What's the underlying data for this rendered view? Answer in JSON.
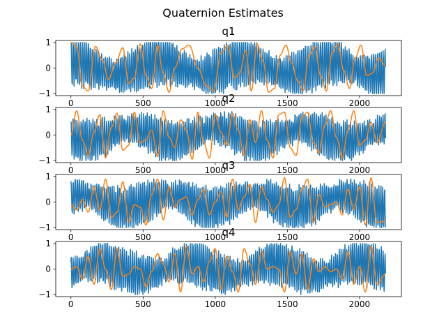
{
  "figure": {
    "title": "Quaternion Estimates"
  },
  "colors": {
    "measured": "#1f77b4",
    "estimate": "#ff7f0e",
    "axis": "#000000"
  },
  "chart_data": [
    {
      "type": "line",
      "title": "q1",
      "xlim": [
        -105,
        2290
      ],
      "ylim": [
        -1.08,
        1.08
      ],
      "xticks": [
        0,
        500,
        1000,
        1500,
        2000
      ],
      "yticks": [
        -1,
        0,
        1
      ],
      "grid": false,
      "x_range": [
        0,
        2180
      ],
      "series": [
        {
          "color": "#1f77b4",
          "kind": "noisy",
          "seed": 11,
          "amplitude": 0.95,
          "mean": 0.0
        },
        {
          "color": "#ff7f0e",
          "kind": "smooth",
          "x": [
            0,
            40,
            80,
            120,
            170,
            220,
            260,
            310,
            360,
            400,
            440,
            480,
            520,
            560,
            600,
            640,
            680,
            720,
            770,
            820,
            880,
            940,
            990,
            1040,
            1090,
            1130,
            1170,
            1210,
            1250,
            1290,
            1330,
            1370,
            1410,
            1450,
            1490,
            1530,
            1570,
            1610,
            1650,
            1690,
            1730,
            1770,
            1810,
            1850,
            1890,
            1930,
            1970,
            2010,
            2050,
            2090,
            2130,
            2180
          ],
          "y": [
            1.0,
            0.85,
            -0.7,
            -0.9,
            0.85,
            0.3,
            -0.45,
            0.2,
            0.8,
            -0.6,
            -0.4,
            0.95,
            -0.3,
            -0.8,
            0.9,
            -0.2,
            -0.95,
            0.0,
            0.75,
            0.9,
            0.0,
            -0.7,
            -0.9,
            0.6,
            0.9,
            -0.4,
            -0.2,
            0.7,
            -0.9,
            0.95,
            0.3,
            -0.95,
            -0.8,
            0.5,
            0.9,
            0.2,
            -0.5,
            -0.9,
            0.5,
            0.85,
            -0.3,
            -0.9,
            0.6,
            0.95,
            -0.1,
            -0.8,
            0.4,
            0.9,
            -0.3,
            -0.2,
            0.4,
            0.1
          ]
        }
      ]
    },
    {
      "type": "line",
      "title": "q2",
      "xlim": [
        -105,
        2290
      ],
      "ylim": [
        -1.08,
        1.08
      ],
      "xticks": [
        0,
        500,
        1000,
        1500,
        2000
      ],
      "yticks": [
        -1,
        0,
        1
      ],
      "grid": false,
      "x_range": [
        0,
        2180
      ],
      "series": [
        {
          "color": "#1f77b4",
          "kind": "noisy",
          "seed": 23,
          "amplitude": 0.8,
          "mean": 0.0
        },
        {
          "color": "#ff7f0e",
          "kind": "smooth",
          "x": [
            0,
            40,
            80,
            120,
            160,
            200,
            240,
            280,
            320,
            360,
            400,
            440,
            480,
            520,
            560,
            600,
            640,
            680,
            720,
            760,
            800,
            840,
            880,
            920,
            960,
            1000,
            1040,
            1080,
            1120,
            1160,
            1200,
            1240,
            1280,
            1320,
            1360,
            1400,
            1440,
            1480,
            1520,
            1560,
            1600,
            1640,
            1680,
            1720,
            1760,
            1800,
            1840,
            1880,
            1920,
            1960,
            2000,
            2040,
            2080,
            2120,
            2180
          ],
          "y": [
            0.0,
            0.95,
            -0.2,
            -0.8,
            0.1,
            0.8,
            -0.9,
            0.3,
            0.85,
            -0.6,
            -0.4,
            0.9,
            -0.3,
            -0.2,
            0.2,
            -0.85,
            0.95,
            -0.1,
            -0.5,
            0.6,
            0.2,
            -0.95,
            0.9,
            -0.3,
            -0.9,
            0.8,
            0.1,
            -0.4,
            0.85,
            0.2,
            -0.8,
            0.6,
            -0.3,
            0.95,
            -0.2,
            -0.9,
            0.8,
            0.9,
            -0.5,
            -0.8,
            0.7,
            0.9,
            -0.3,
            -0.7,
            0.4,
            0.95,
            -0.1,
            -0.9,
            0.2,
            0.95,
            -0.4,
            -0.2,
            0.5,
            -0.3,
            0.5
          ]
        }
      ]
    },
    {
      "type": "line",
      "title": "q3",
      "xlim": [
        -105,
        2290
      ],
      "ylim": [
        -1.08,
        1.08
      ],
      "xticks": [
        0,
        500,
        1000,
        1500,
        2000
      ],
      "yticks": [
        -1,
        0,
        1
      ],
      "grid": false,
      "x_range": [
        0,
        2180
      ],
      "series": [
        {
          "color": "#1f77b4",
          "kind": "noisy",
          "seed": 37,
          "amplitude": 0.85,
          "mean": 0.0
        },
        {
          "color": "#ff7f0e",
          "kind": "smooth",
          "x": [
            0,
            40,
            80,
            120,
            160,
            200,
            240,
            280,
            320,
            360,
            400,
            440,
            480,
            520,
            560,
            600,
            640,
            680,
            720,
            760,
            800,
            840,
            880,
            920,
            960,
            1000,
            1040,
            1080,
            1120,
            1160,
            1200,
            1240,
            1280,
            1320,
            1360,
            1400,
            1440,
            1480,
            1520,
            1560,
            1600,
            1640,
            1680,
            1720,
            1760,
            1800,
            1840,
            1880,
            1920,
            1960,
            2000,
            2040,
            2080,
            2120,
            2180
          ],
          "y": [
            -0.1,
            -0.3,
            0.1,
            -0.4,
            0.6,
            -0.3,
            0.9,
            -0.6,
            -0.4,
            0.8,
            -0.8,
            -0.1,
            -0.2,
            -0.9,
            0.3,
            0.9,
            -0.7,
            0.6,
            -0.2,
            0.1,
            0.2,
            -0.5,
            0.1,
            0.5,
            -0.5,
            0.0,
            0.4,
            -0.6,
            0.9,
            -0.3,
            0.2,
            0.7,
            -0.8,
            0.6,
            0.1,
            -0.4,
            -0.1,
            0.95,
            -0.6,
            -0.3,
            0.5,
            0.9,
            -0.8,
            0.3,
            -0.2,
            -0.1,
            0.0,
            -0.5,
            0.5,
            -0.3,
            0.6,
            -0.9,
            0.95,
            -0.8,
            -0.75
          ]
        }
      ]
    },
    {
      "type": "line",
      "title": "q4",
      "xlim": [
        -105,
        2290
      ],
      "ylim": [
        -1.08,
        1.08
      ],
      "xticks": [
        0,
        500,
        1000,
        1500,
        2000
      ],
      "yticks": [
        -1,
        0,
        1
      ],
      "grid": false,
      "x_range": [
        0,
        2180
      ],
      "series": [
        {
          "color": "#1f77b4",
          "kind": "noisy",
          "seed": 53,
          "amplitude": 0.85,
          "mean": 0.0
        },
        {
          "color": "#ff7f0e",
          "kind": "smooth",
          "x": [
            0,
            40,
            80,
            120,
            160,
            200,
            240,
            280,
            320,
            360,
            400,
            440,
            480,
            520,
            560,
            600,
            640,
            680,
            720,
            760,
            800,
            840,
            880,
            920,
            960,
            1000,
            1040,
            1080,
            1120,
            1160,
            1200,
            1240,
            1280,
            1320,
            1360,
            1400,
            1440,
            1480,
            1520,
            1560,
            1600,
            1640,
            1680,
            1720,
            1760,
            1800,
            1840,
            1880,
            1920,
            1960,
            2000,
            2040,
            2080,
            2120,
            2180
          ],
          "y": [
            0.0,
            0.1,
            -0.4,
            0.5,
            -0.6,
            0.8,
            0.0,
            -0.8,
            0.8,
            -0.3,
            -0.2,
            0.1,
            0.0,
            -0.7,
            -0.1,
            0.6,
            0.2,
            -0.5,
            0.6,
            -0.9,
            0.9,
            -0.2,
            0.1,
            -0.5,
            0.3,
            0.8,
            -0.8,
            0.5,
            -0.1,
            -0.9,
            0.8,
            0.2,
            -0.6,
            0.7,
            0.0,
            0.1,
            0.0,
            -0.9,
            0.7,
            -0.2,
            0.6,
            -0.8,
            0.4,
            -0.1,
            0.1,
            -0.1,
            0.0,
            -0.4,
            0.7,
            -0.6,
            0.1,
            -0.9,
            0.9,
            -0.6,
            -0.2
          ]
        }
      ]
    }
  ]
}
